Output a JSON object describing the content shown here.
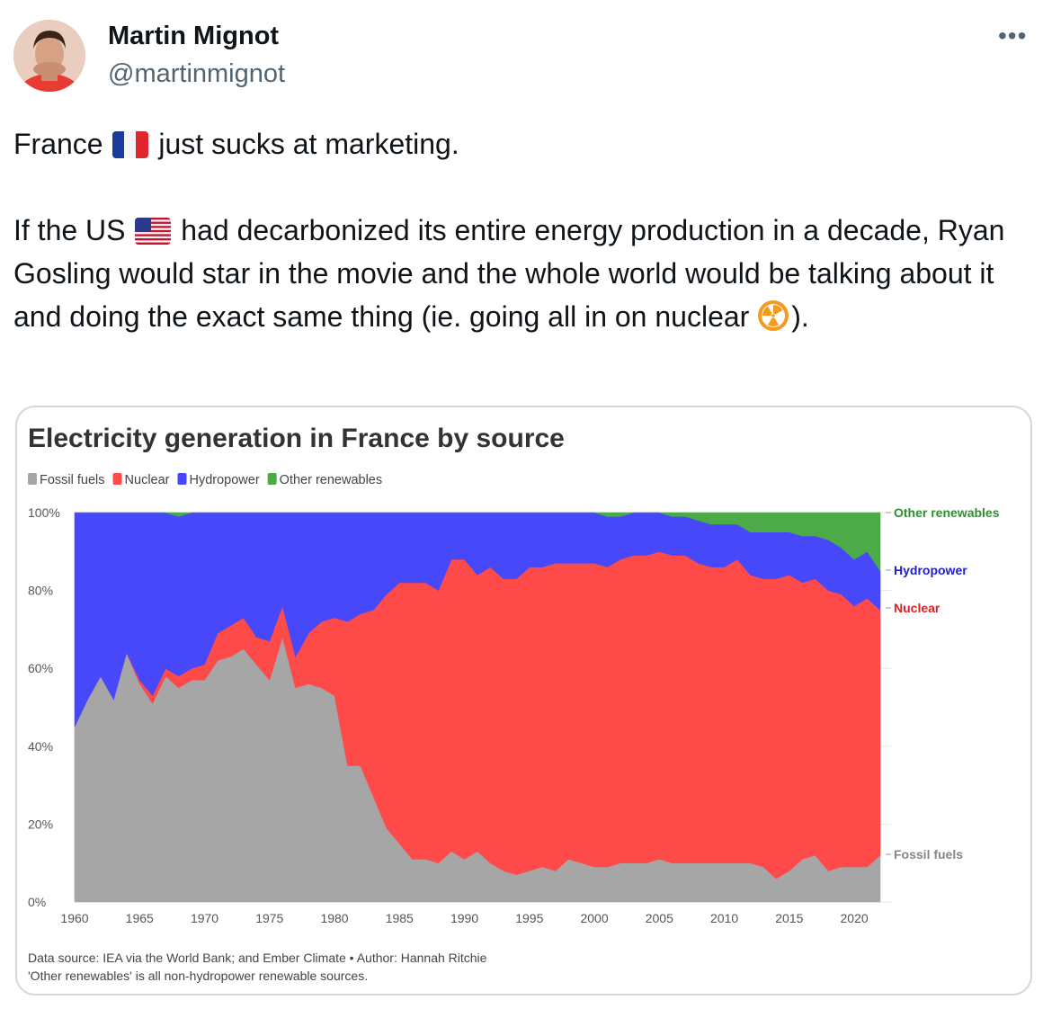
{
  "author": {
    "name": "Martin Mignot",
    "handle": "@martinmignot",
    "more_label": "•••"
  },
  "tweet": {
    "p1_before": "France",
    "p1_after": " just sucks at marketing.",
    "p2_before": "If the US",
    "p2_after": " had decarbonized its entire energy production in a decade, Ryan Gosling would star in the movie and the whole world would be talking about it and doing the exact same thing (ie. going all in on nuclear ",
    "p2_end": ")."
  },
  "icons": {
    "flag_france": "france-flag-icon",
    "flag_us": "us-flag-icon",
    "radioactive": "radioactive-icon",
    "more": "more-horizontal-icon"
  },
  "chart_data": {
    "type": "area",
    "stacked": true,
    "normalized": true,
    "title": "Electricity generation in France by source",
    "legend": [
      "Fossil fuels",
      "Nuclear",
      "Hydropower",
      "Other renewables"
    ],
    "legend_position": "top-left",
    "colors": {
      "Fossil fuels": "#a6a6a6",
      "Nuclear": "#ff4a4a",
      "Hydropower": "#4848fb",
      "Other renewables": "#4caa49",
      "Fossil fuels label": "#878787",
      "Nuclear label": "#e01e1e",
      "Hydropower label": "#1e1ecf",
      "Other renewables label": "#2f8f2f"
    },
    "y_ticks": [
      "0%",
      "20%",
      "40%",
      "60%",
      "80%",
      "100%"
    ],
    "x_ticks": [
      "1960",
      "1965",
      "1970",
      "1975",
      "1980",
      "1985",
      "1990",
      "1995",
      "2000",
      "2005",
      "2010",
      "2015",
      "2020"
    ],
    "xlim": [
      1960,
      2022
    ],
    "ylim": [
      0,
      100
    ],
    "end_labels": [
      "Other renewables",
      "Hydropower",
      "Nuclear",
      "Fossil fuels"
    ],
    "source": "Data source: IEA via the World Bank; and Ember Climate • Author: Hannah Ritchie",
    "note": "'Other renewables' is all non-hydropower renewable sources.",
    "years": [
      1960,
      1961,
      1962,
      1963,
      1964,
      1965,
      1966,
      1967,
      1968,
      1969,
      1970,
      1971,
      1972,
      1973,
      1974,
      1975,
      1976,
      1977,
      1978,
      1979,
      1980,
      1981,
      1982,
      1983,
      1984,
      1985,
      1986,
      1987,
      1988,
      1989,
      1990,
      1991,
      1992,
      1993,
      1994,
      1995,
      1996,
      1997,
      1998,
      1999,
      2000,
      2001,
      2002,
      2003,
      2004,
      2005,
      2006,
      2007,
      2008,
      2009,
      2010,
      2011,
      2012,
      2013,
      2014,
      2015,
      2016,
      2017,
      2018,
      2019,
      2020,
      2021,
      2022
    ],
    "series": [
      {
        "name": "Fossil fuels",
        "values": [
          45,
          52,
          58,
          52,
          64,
          56,
          51,
          58,
          55,
          57,
          57,
          62,
          63,
          65,
          61,
          57,
          68,
          55,
          56,
          55,
          53,
          35,
          35,
          27,
          19,
          15,
          11,
          11,
          10,
          13,
          11,
          13,
          10,
          8,
          7,
          8,
          9,
          8,
          11,
          10,
          9,
          9,
          10,
          10,
          10,
          11,
          10,
          10,
          10,
          10,
          10,
          10,
          10,
          9,
          6,
          8,
          11,
          12,
          8,
          9,
          9,
          9,
          12
        ]
      },
      {
        "name": "Nuclear",
        "values": [
          0,
          0,
          0,
          0,
          0,
          1,
          2,
          2,
          3,
          3,
          4,
          7,
          8,
          8,
          7,
          10,
          8,
          8,
          13,
          17,
          20,
          37,
          39,
          48,
          60,
          67,
          71,
          71,
          70,
          75,
          77,
          71,
          76,
          75,
          76,
          78,
          77,
          79,
          76,
          77,
          78,
          77,
          78,
          79,
          79,
          79,
          79,
          79,
          77,
          76,
          76,
          78,
          74,
          74,
          77,
          76,
          71,
          71,
          72,
          70,
          67,
          69,
          63
        ]
      },
      {
        "name": "Hydropower",
        "values": [
          55,
          48,
          42,
          48,
          36,
          43,
          47,
          40,
          41,
          40,
          39,
          31,
          29,
          27,
          32,
          33,
          24,
          37,
          31,
          28,
          27,
          28,
          26,
          25,
          21,
          18,
          18,
          18,
          20,
          12,
          12,
          16,
          14,
          17,
          17,
          14,
          14,
          13,
          13,
          13,
          13,
          13,
          11,
          11,
          11,
          10,
          10,
          10,
          11,
          11,
          11,
          9,
          11,
          12,
          12,
          11,
          12,
          11,
          13,
          12,
          12,
          12,
          10
        ]
      },
      {
        "name": "Other renewables",
        "values": [
          0,
          0,
          0,
          0,
          0,
          0,
          0,
          0,
          1,
          0,
          0,
          0,
          0,
          0,
          0,
          0,
          0,
          0,
          0,
          0,
          0,
          0,
          0,
          0,
          0,
          0,
          0,
          0,
          0,
          0,
          0,
          0,
          0,
          0,
          0,
          0,
          0,
          0,
          0,
          0,
          0,
          1,
          1,
          0,
          0,
          0,
          1,
          1,
          2,
          3,
          3,
          3,
          5,
          5,
          5,
          5,
          6,
          6,
          7,
          9,
          12,
          10,
          15
        ]
      }
    ]
  }
}
